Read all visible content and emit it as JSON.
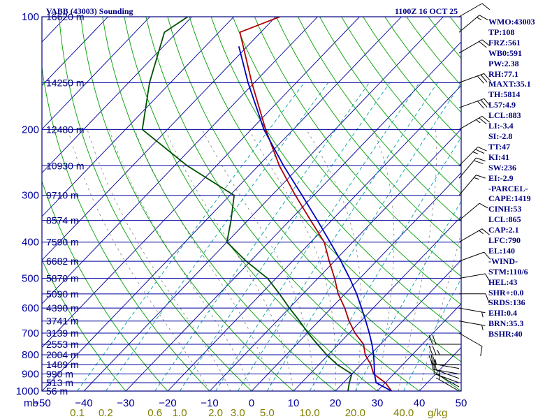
{
  "header": {
    "title": "VABB (43003) Sounding",
    "time": "1100Z 16 OCT 25"
  },
  "indices": [
    "WMO:43003",
    "TP:108",
    "FRZ:561",
    "WB0:591",
    "PW:2.38",
    "RH:77.1",
    "MAXT:35.1",
    "TH:5814",
    "L57:4.9",
    "LCL:883",
    "LI:-3.4",
    "SI:-2.8",
    "TT:47",
    "KI:41",
    "SW:236",
    "EI:-2.9",
    "-PARCEL-",
    "CAPE:1419",
    "CINH:53",
    "LCL:865",
    "CAP:2.1",
    "LFC:790",
    "EL:140",
    "-WIND-",
    "STM:110/6",
    "HEL:43",
    "SHR+:0.0",
    "SRDS:136",
    "EHI:0.4",
    "BRN:35.3",
    "BSHR:40"
  ],
  "colors": {
    "frame": "#000080",
    "isobar": "#0000a0",
    "temperature": "#b00000",
    "dewpoint": "#005000",
    "parcel": "#0000c0",
    "dry_adiabat": "#00a000",
    "mixing_ratio": "#00a0a0",
    "moist_adiabat": "#808080",
    "axis_labels": "#0000a0",
    "mixing_labels": "#808000"
  },
  "chart_data": {
    "type": "line",
    "ylim": [
      1000,
      100
    ],
    "xlim": [
      -50,
      50
    ],
    "y_log_scale": true,
    "pressure_unit": "mb",
    "mixing_ratio_unit": "g/kg",
    "pressure_ticks": [
      100,
      200,
      300,
      400,
      500,
      600,
      700,
      800,
      900,
      1000
    ],
    "temperature_ticks": [
      "-50",
      "-40",
      "-30",
      "-20",
      "-10",
      "0",
      "10",
      "20",
      "30",
      "40",
      "50"
    ],
    "mixing_ratio_ticks": [
      "0.1",
      "0.2",
      "0.6",
      "1.0",
      "2.0",
      "3.0",
      "5.0",
      "10.0",
      "20.0",
      "40.0"
    ],
    "mixing_ratio_values": [
      0.1,
      0.2,
      0.6,
      1.0,
      2.0,
      3.0,
      5.0,
      10.0,
      20.0,
      40.0
    ],
    "height_labels": [
      {
        "p": 100,
        "label": "16620 m"
      },
      {
        "p": 150,
        "label": "14250 m"
      },
      {
        "p": 200,
        "label": "12480 m"
      },
      {
        "p": 250,
        "label": "10930 m"
      },
      {
        "p": 300,
        "label": "9710 m"
      },
      {
        "p": 350,
        "label": "8574 m"
      },
      {
        "p": 400,
        "label": "7590 m"
      },
      {
        "p": 450,
        "label": "6682 m"
      },
      {
        "p": 500,
        "label": "5870 m"
      },
      {
        "p": 550,
        "label": "5090 m"
      },
      {
        "p": 600,
        "label": "4390 m"
      },
      {
        "p": 650,
        "label": "3741 m"
      },
      {
        "p": 700,
        "label": "3139 m"
      },
      {
        "p": 750,
        "label": "2553 m"
      },
      {
        "p": 800,
        "label": "2004 m"
      },
      {
        "p": 850,
        "label": "1489 m"
      },
      {
        "p": 900,
        "label": "990 m"
      },
      {
        "p": 950,
        "label": "513 m"
      },
      {
        "p": 1000,
        "label": "56 m"
      }
    ],
    "series": [
      {
        "name": "temperature",
        "points": [
          {
            "p": 1000,
            "t": 33.4
          },
          {
            "p": 950,
            "t": 30.0
          },
          {
            "p": 900,
            "t": 25.2
          },
          {
            "p": 850,
            "t": 22.4
          },
          {
            "p": 800,
            "t": 18.8
          },
          {
            "p": 750,
            "t": 16.0
          },
          {
            "p": 700,
            "t": 11.4
          },
          {
            "p": 650,
            "t": 7.2
          },
          {
            "p": 600,
            "t": 3.2
          },
          {
            "p": 550,
            "t": -1.6
          },
          {
            "p": 500,
            "t": -6.0
          },
          {
            "p": 450,
            "t": -11.2
          },
          {
            "p": 400,
            "t": -16.8
          },
          {
            "p": 350,
            "t": -25.0
          },
          {
            "p": 300,
            "t": -34.4
          },
          {
            "p": 250,
            "t": -45.0
          },
          {
            "p": 200,
            "t": -56.6
          },
          {
            "p": 150,
            "t": -70.6
          },
          {
            "p": 110,
            "t": -85.0
          },
          {
            "p": 100,
            "t": -79.0
          }
        ]
      },
      {
        "name": "dewpoint",
        "points": [
          {
            "p": 1000,
            "t": 23.0
          },
          {
            "p": 950,
            "t": 21.4
          },
          {
            "p": 900,
            "t": 20.0
          },
          {
            "p": 850,
            "t": 14.4
          },
          {
            "p": 800,
            "t": 9.6
          },
          {
            "p": 750,
            "t": 5.0
          },
          {
            "p": 700,
            "t": 0.2
          },
          {
            "p": 650,
            "t": -4.6
          },
          {
            "p": 600,
            "t": -10.0
          },
          {
            "p": 550,
            "t": -15.6
          },
          {
            "p": 500,
            "t": -22.0
          },
          {
            "p": 450,
            "t": -31.0
          },
          {
            "p": 400,
            "t": -40.0
          },
          {
            "p": 350,
            "t": -44.0
          },
          {
            "p": 300,
            "t": -49.0
          },
          {
            "p": 250,
            "t": -67.0
          },
          {
            "p": 200,
            "t": -86.0
          },
          {
            "p": 150,
            "t": -95.0
          },
          {
            "p": 110,
            "t": -103.0
          },
          {
            "p": 100,
            "t": -101.0
          }
        ]
      },
      {
        "name": "parcel",
        "points": [
          {
            "p": 1000,
            "t": 33.4
          },
          {
            "p": 950,
            "t": 27.8
          },
          {
            "p": 900,
            "t": 25.4
          },
          {
            "p": 850,
            "t": 23.2
          },
          {
            "p": 800,
            "t": 20.8
          },
          {
            "p": 750,
            "t": 18.0
          },
          {
            "p": 700,
            "t": 14.8
          },
          {
            "p": 650,
            "t": 11.2
          },
          {
            "p": 600,
            "t": 7.2
          },
          {
            "p": 550,
            "t": 2.8
          },
          {
            "p": 500,
            "t": -2.4
          },
          {
            "p": 450,
            "t": -8.4
          },
          {
            "p": 400,
            "t": -15.4
          },
          {
            "p": 350,
            "t": -23.4
          },
          {
            "p": 300,
            "t": -32.8
          },
          {
            "p": 250,
            "t": -44.0
          },
          {
            "p": 200,
            "t": -57.0
          },
          {
            "p": 150,
            "t": -71.5
          },
          {
            "p": 120,
            "t": -82.0
          }
        ]
      }
    ],
    "wind_barbs": [
      {
        "p": 1000,
        "dir": 300,
        "kt": 5
      },
      {
        "p": 975,
        "dir": 300,
        "kt": 5
      },
      {
        "p": 950,
        "dir": 290,
        "kt": 10
      },
      {
        "p": 925,
        "dir": 290,
        "kt": 10
      },
      {
        "p": 900,
        "dir": 280,
        "kt": 15
      },
      {
        "p": 870,
        "dir": 280,
        "kt": 15
      },
      {
        "p": 850,
        "dir": 270,
        "kt": 20
      },
      {
        "p": 800,
        "dir": 270,
        "kt": 25
      },
      {
        "p": 750,
        "dir": 270,
        "kt": 20
      },
      {
        "p": 700,
        "dir": 120,
        "kt": 10
      },
      {
        "p": 650,
        "dir": 100,
        "kt": 5
      },
      {
        "p": 600,
        "dir": 100,
        "kt": 5
      },
      {
        "p": 550,
        "dir": 90,
        "kt": 10
      },
      {
        "p": 500,
        "dir": 80,
        "kt": 10
      },
      {
        "p": 450,
        "dir": 70,
        "kt": 10
      },
      {
        "p": 400,
        "dir": 60,
        "kt": 15
      },
      {
        "p": 350,
        "dir": 50,
        "kt": 10
      },
      {
        "p": 300,
        "dir": 40,
        "kt": 15
      },
      {
        "p": 270,
        "dir": 40,
        "kt": 20
      },
      {
        "p": 250,
        "dir": 45,
        "kt": 25
      },
      {
        "p": 200,
        "dir": 60,
        "kt": 25
      },
      {
        "p": 175,
        "dir": 70,
        "kt": 30
      },
      {
        "p": 150,
        "dir": 70,
        "kt": 30
      },
      {
        "p": 125,
        "dir": 60,
        "kt": 20
      },
      {
        "p": 110,
        "dir": 50,
        "kt": 15
      },
      {
        "p": 100,
        "dir": 60,
        "kt": 10
      }
    ]
  }
}
